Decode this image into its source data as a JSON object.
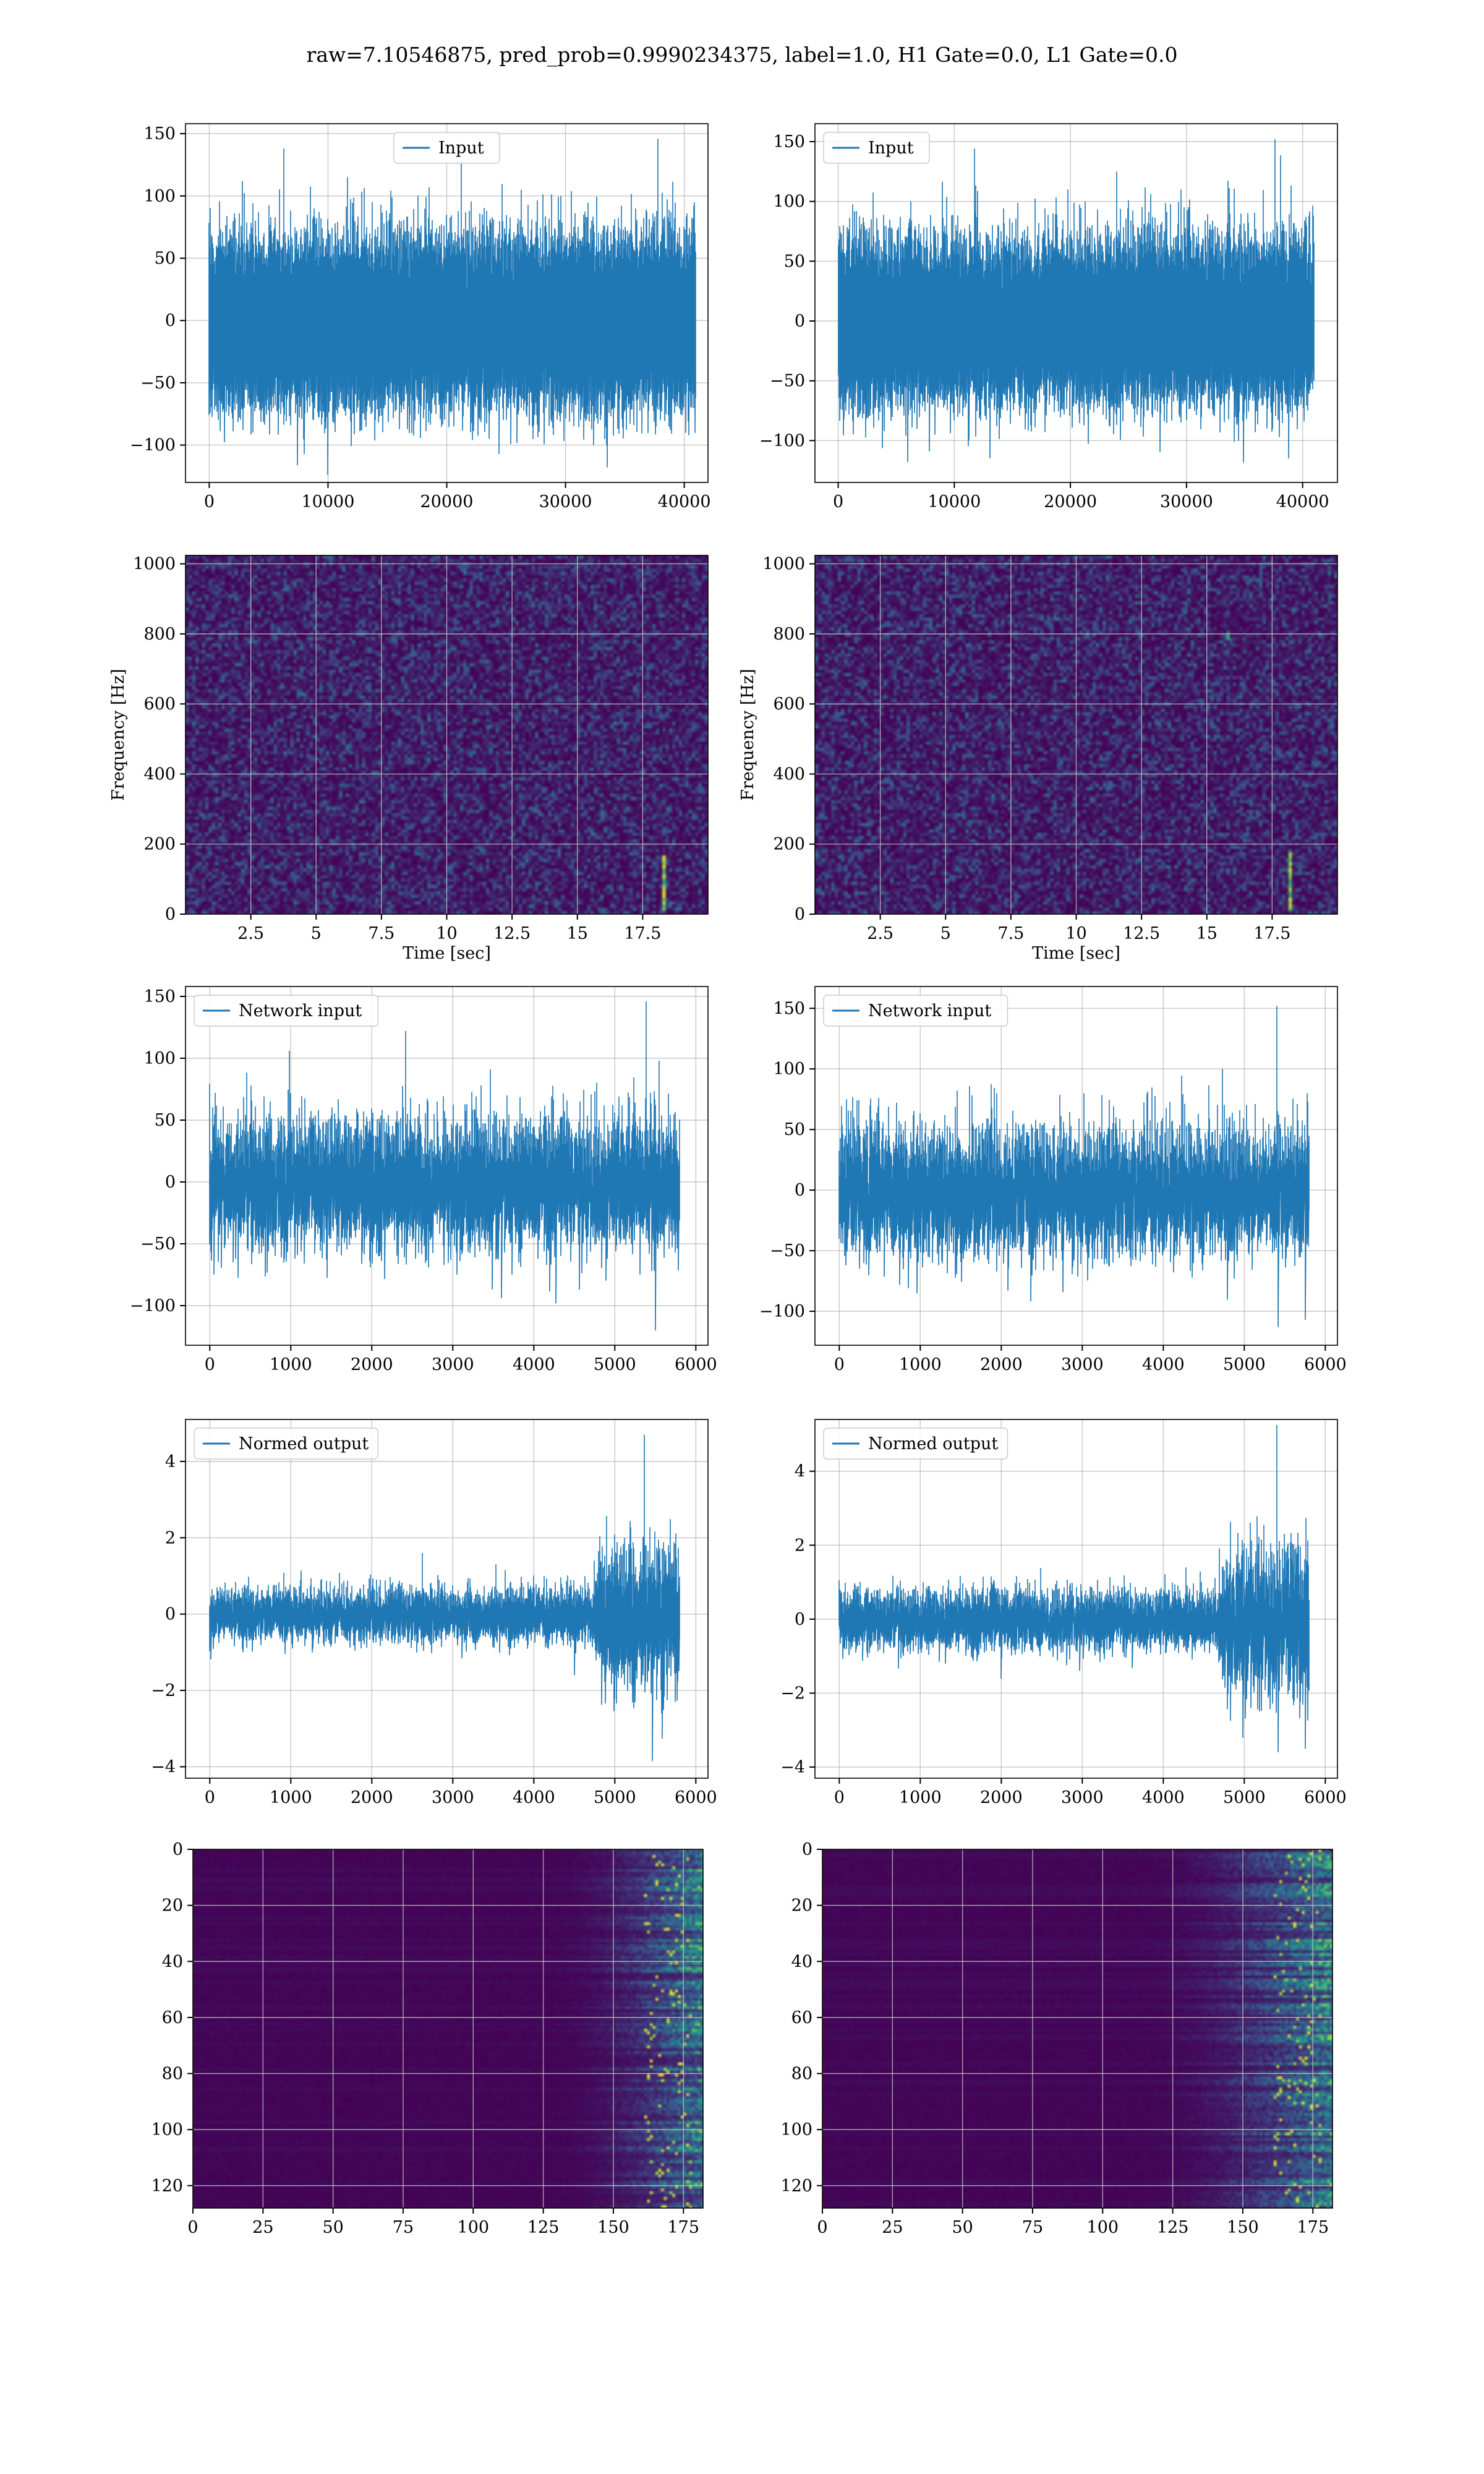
{
  "figure": {
    "suptitle": "raw=7.10546875, pred_prob=0.9990234375, label=1.0, H1 Gate=0.0, L1 Gate=0.0"
  },
  "colors": {
    "line": "#1f77b4",
    "grid": "#b0b0b0",
    "viridis_low": "#440154",
    "viridis_mid": "#21918c",
    "viridis_high": "#fde725"
  },
  "chart_data": [
    {
      "id": "h1-input",
      "type": "line",
      "row": 0,
      "col": 0,
      "legend": "Input",
      "legend_loc": "upper center",
      "xlim": [
        -2000,
        42000
      ],
      "ylim": [
        -130,
        158
      ],
      "xticks": [
        0,
        10000,
        20000,
        30000,
        40000
      ],
      "yticks": [
        -100,
        -50,
        0,
        50,
        100,
        150
      ],
      "series": [
        {
          "name": "Input",
          "x_range": [
            0,
            40960
          ],
          "n": 40960,
          "noise_sigma": 30,
          "spikes": [
            [
              6300,
              138
            ],
            [
              21200,
              128
            ],
            [
              37800,
              146
            ],
            [
              10000,
              -124
            ],
            [
              33500,
              -118
            ]
          ]
        }
      ]
    },
    {
      "id": "l1-input",
      "type": "line",
      "row": 0,
      "col": 1,
      "legend": "Input",
      "legend_loc": "upper left",
      "xlim": [
        -2000,
        43000
      ],
      "ylim": [
        -135,
        165
      ],
      "xticks": [
        0,
        10000,
        20000,
        30000,
        40000
      ],
      "yticks": [
        -100,
        -50,
        0,
        50,
        100,
        150
      ],
      "series": [
        {
          "name": "Input",
          "x_range": [
            0,
            40960
          ],
          "n": 40960,
          "noise_sigma": 30,
          "spikes": [
            [
              37600,
              152
            ],
            [
              6000,
              -118
            ],
            [
              38800,
              -115
            ],
            [
              19800,
              110
            ]
          ]
        }
      ]
    },
    {
      "id": "h1-spectrogram",
      "type": "heatmap",
      "row": 1,
      "col": 0,
      "xlabel": "Time [sec]",
      "ylabel": "Frequency [Hz]",
      "xlim": [
        0,
        20
      ],
      "ylim": [
        0,
        1024
      ],
      "xticks": [
        2.5,
        5.0,
        7.5,
        10.0,
        12.5,
        15.0,
        17.5
      ],
      "yticks": [
        0,
        200,
        400,
        600,
        800,
        1000
      ],
      "features": [
        {
          "t": 18.2,
          "f_min": 20,
          "f_max": 170
        }
      ]
    },
    {
      "id": "l1-spectrogram",
      "type": "heatmap",
      "row": 1,
      "col": 1,
      "xlabel": "Time [sec]",
      "ylabel": "Frequency [Hz]",
      "xlim": [
        0,
        20
      ],
      "ylim": [
        0,
        1024
      ],
      "xticks": [
        2.5,
        5.0,
        7.5,
        10.0,
        12.5,
        15.0,
        17.5
      ],
      "yticks": [
        0,
        200,
        400,
        600,
        800,
        1000
      ],
      "features": [
        {
          "t": 18.1,
          "f_min": 20,
          "f_max": 180
        },
        {
          "t": 15.8,
          "f_min": 790,
          "f_max": 800
        }
      ]
    },
    {
      "id": "h1-network-input",
      "type": "line",
      "row": 2,
      "col": 0,
      "legend": "Network input",
      "legend_loc": "upper left",
      "xlim": [
        -300,
        6150
      ],
      "ylim": [
        -132,
        158
      ],
      "xticks": [
        0,
        1000,
        2000,
        3000,
        4000,
        5000,
        6000
      ],
      "yticks": [
        -100,
        -50,
        0,
        50,
        100,
        150
      ],
      "series": [
        {
          "name": "Network input",
          "x_range": [
            0,
            5800
          ],
          "n": 5800,
          "noise_sigma": 26,
          "spikes": [
            [
              5390,
              146
            ],
            [
              5500,
              -120
            ],
            [
              2420,
              122
            ],
            [
              5550,
              98
            ]
          ]
        }
      ]
    },
    {
      "id": "l1-network-input",
      "type": "line",
      "row": 2,
      "col": 1,
      "legend": "Network input",
      "legend_loc": "upper left",
      "xlim": [
        -300,
        6150
      ],
      "ylim": [
        -128,
        168
      ],
      "xticks": [
        0,
        1000,
        2000,
        3000,
        4000,
        5000,
        6000
      ],
      "yticks": [
        -100,
        -50,
        0,
        50,
        100,
        150
      ],
      "series": [
        {
          "name": "Network input",
          "x_range": [
            0,
            5800
          ],
          "n": 5800,
          "noise_sigma": 26,
          "spikes": [
            [
              5400,
              152
            ],
            [
              5420,
              -113
            ],
            [
              5750,
              -107
            ],
            [
              4730,
              100
            ]
          ]
        }
      ]
    },
    {
      "id": "h1-normed-output",
      "type": "line",
      "row": 3,
      "col": 0,
      "legend": "Normed output",
      "legend_loc": "upper left",
      "xlim": [
        -300,
        6150
      ],
      "ylim": [
        -4.3,
        5.1
      ],
      "xticks": [
        0,
        1000,
        2000,
        3000,
        4000,
        5000,
        6000
      ],
      "yticks": [
        -4,
        -2,
        0,
        2,
        4
      ],
      "series": [
        {
          "name": "Normed output",
          "x_range": [
            0,
            5800
          ],
          "n": 5800,
          "noise_sigma": 0.35,
          "late_sigma": 0.9,
          "late_start": 4700,
          "spikes": [
            [
              5360,
              4.7
            ],
            [
              5460,
              -3.85
            ],
            [
              2620,
              1.6
            ],
            [
              4500,
              -1.6
            ]
          ]
        }
      ]
    },
    {
      "id": "l1-normed-output",
      "type": "line",
      "row": 3,
      "col": 1,
      "legend": "Normed output",
      "legend_loc": "upper left",
      "xlim": [
        -300,
        6150
      ],
      "ylim": [
        -4.3,
        5.4
      ],
      "xticks": [
        0,
        1000,
        2000,
        3000,
        4000,
        5000,
        6000
      ],
      "yticks": [
        -4,
        -2,
        0,
        2,
        4
      ],
      "series": [
        {
          "name": "Normed output",
          "x_range": [
            0,
            5800
          ],
          "n": 5800,
          "noise_sigma": 0.4,
          "late_sigma": 1.0,
          "late_start": 4650,
          "spikes": [
            [
              5400,
              5.25
            ],
            [
              5420,
              -3.6
            ],
            [
              5750,
              -3.5
            ],
            [
              4280,
              1.4
            ]
          ]
        }
      ]
    },
    {
      "id": "h1-feature-map",
      "type": "heatmap",
      "row": 4,
      "col": 0,
      "xlim": [
        0,
        182
      ],
      "ylim": [
        128,
        0
      ],
      "xticks": [
        0,
        25,
        50,
        75,
        100,
        125,
        150,
        175
      ],
      "yticks": [
        0,
        20,
        40,
        60,
        80,
        100,
        120
      ],
      "active_from": 125
    },
    {
      "id": "l1-feature-map",
      "type": "heatmap",
      "row": 4,
      "col": 1,
      "xlim": [
        0,
        182
      ],
      "ylim": [
        128,
        0
      ],
      "xticks": [
        0,
        25,
        50,
        75,
        100,
        125,
        150,
        175
      ],
      "yticks": [
        0,
        20,
        40,
        60,
        80,
        100,
        120
      ],
      "active_from": 110
    }
  ]
}
